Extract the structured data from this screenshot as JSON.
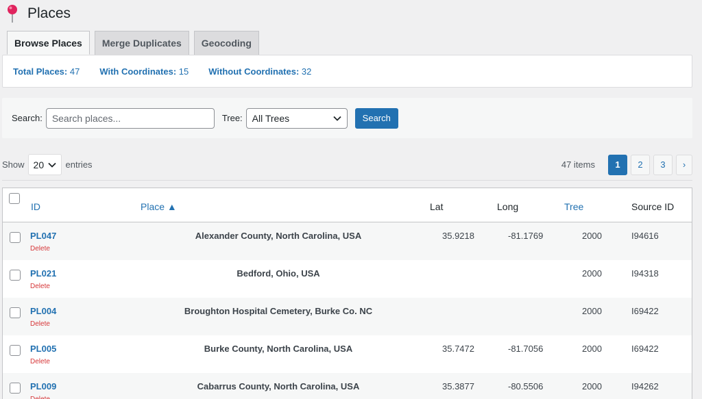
{
  "page": {
    "title": "Places"
  },
  "tabs": [
    {
      "label": "Browse Places",
      "active": true
    },
    {
      "label": "Merge Duplicates",
      "active": false
    },
    {
      "label": "Geocoding",
      "active": false
    }
  ],
  "stats": [
    {
      "label": "Total Places:",
      "value": "47"
    },
    {
      "label": "With Coordinates:",
      "value": "15"
    },
    {
      "label": "Without Coordinates:",
      "value": "32"
    }
  ],
  "search": {
    "label": "Search:",
    "placeholder": "Search places...",
    "tree_label": "Tree:",
    "tree_value": "All Trees",
    "button": "Search"
  },
  "controls": {
    "show_label": "Show",
    "entries_value": "20",
    "entries_label": "entries",
    "items_count": "47 items",
    "pages": [
      "1",
      "2",
      "3"
    ],
    "current_page": "1",
    "next": "›"
  },
  "table": {
    "headers": {
      "id": "ID",
      "place": "Place ▲",
      "lat": "Lat",
      "long": "Long",
      "tree": "Tree",
      "source": "Source ID"
    },
    "delete_label": "Delete",
    "rows": [
      {
        "id": "PL047",
        "place": "Alexander County, North Carolina, USA",
        "lat": "35.9218",
        "long": "-81.1769",
        "tree": "2000",
        "source": "I94616"
      },
      {
        "id": "PL021",
        "place": "Bedford, Ohio, USA",
        "lat": "",
        "long": "",
        "tree": "2000",
        "source": "I94318"
      },
      {
        "id": "PL004",
        "place": "Broughton Hospital Cemetery, Burke Co. NC",
        "lat": "",
        "long": "",
        "tree": "2000",
        "source": "I69422"
      },
      {
        "id": "PL005",
        "place": "Burke County, North Carolina, USA",
        "lat": "35.7472",
        "long": "-81.7056",
        "tree": "2000",
        "source": "I69422"
      },
      {
        "id": "PL009",
        "place": "Cabarrus County, North Carolina, USA",
        "lat": "35.3877",
        "long": "-80.5506",
        "tree": "2000",
        "source": "I94262"
      }
    ]
  },
  "colors": {
    "accent": "#2271b1",
    "danger": "#d63638",
    "pin": "#e0245e"
  }
}
